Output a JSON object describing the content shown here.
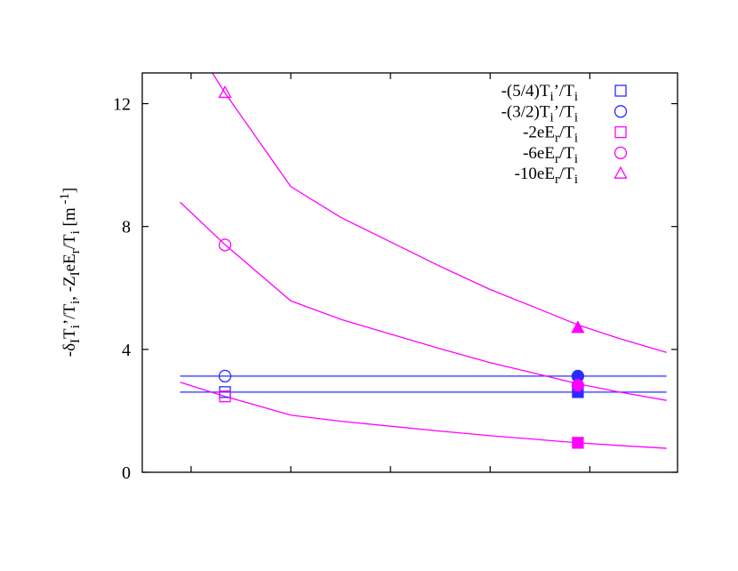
{
  "chart_data": {
    "type": "line",
    "title": "",
    "xlabel": "",
    "ylabel_parts": [
      {
        "t": "-δ"
      },
      {
        "t": "I",
        "sub": true
      },
      {
        "t": "T"
      },
      {
        "t": "i",
        "sub": true
      },
      {
        "t": "’/T"
      },
      {
        "t": "i",
        "sub": true
      },
      {
        "t": ", -Z"
      },
      {
        "t": "I",
        "sub": true
      },
      {
        "t": "eE"
      },
      {
        "t": "r",
        "sub": true
      },
      {
        "t": "/T"
      },
      {
        "t": "i",
        "sub": true
      },
      {
        "t": " [m"
      },
      {
        "t": " -1",
        "sup": true
      },
      {
        "t": "]"
      }
    ],
    "xlim": [
      -0.49,
      4.88
    ],
    "ylim": [
      0,
      13
    ],
    "x_ticks": [
      0,
      1,
      2,
      3,
      4
    ],
    "x_tick_labels_shown": false,
    "y_ticks": [
      0,
      4,
      8,
      12
    ],
    "y_tick_labels": [
      "0",
      "4",
      "8",
      "12"
    ],
    "grid": false,
    "legend_position": "top-right",
    "colors": {
      "blue": "#2b2bff",
      "magenta": "#ff00ff"
    },
    "lines": [
      {
        "color": "blue",
        "x": [
          -0.11,
          4.77
        ],
        "y": [
          3.13,
          3.13
        ]
      },
      {
        "color": "blue",
        "x": [
          -0.11,
          4.77
        ],
        "y": [
          2.61,
          2.61
        ]
      },
      {
        "color": "magenta",
        "x": [
          -0.11,
          0.34,
          1,
          1.5,
          2,
          2.5,
          3,
          3.5,
          3.88,
          4.3,
          4.77
        ],
        "y": [
          2.93,
          2.47,
          1.86,
          1.66,
          1.5,
          1.34,
          1.19,
          1.06,
          0.96,
          0.87,
          0.78
        ]
      },
      {
        "color": "magenta",
        "x": [
          -0.11,
          0.34,
          1,
          1.5,
          2,
          2.5,
          3,
          3.5,
          3.88,
          4.3,
          4.77
        ],
        "y": [
          8.79,
          7.41,
          5.58,
          4.98,
          4.5,
          4.02,
          3.57,
          3.18,
          2.88,
          2.61,
          2.34
        ]
      },
      {
        "color": "magenta",
        "x": [
          -0.11,
          0.34,
          1,
          1.5,
          2,
          2.5,
          3,
          3.5,
          3.88,
          4.3,
          4.77
        ],
        "y": [
          14.65,
          12.35,
          9.3,
          8.3,
          7.5,
          6.7,
          5.95,
          5.3,
          4.8,
          4.35,
          3.9
        ]
      }
    ],
    "series": [
      {
        "name_parts": [
          {
            "t": "-(5/4)T"
          },
          {
            "t": "i",
            "sub": true
          },
          {
            "t": "’/T"
          },
          {
            "t": "i",
            "sub": true
          }
        ],
        "color": "blue",
        "marker": "square",
        "points": [
          {
            "x": 0.34,
            "y": 2.61,
            "filled": false
          },
          {
            "x": 3.88,
            "y": 2.61,
            "filled": true
          }
        ]
      },
      {
        "name_parts": [
          {
            "t": "-(3/2)T"
          },
          {
            "t": "i",
            "sub": true
          },
          {
            "t": "’/T"
          },
          {
            "t": "i",
            "sub": true
          }
        ],
        "color": "blue",
        "marker": "circle",
        "points": [
          {
            "x": 0.34,
            "y": 3.13,
            "filled": false
          },
          {
            "x": 3.88,
            "y": 3.13,
            "filled": true
          }
        ]
      },
      {
        "name_parts": [
          {
            "t": "-2eE"
          },
          {
            "t": "r",
            "sub": true
          },
          {
            "t": "/T"
          },
          {
            "t": "i",
            "sub": true
          }
        ],
        "color": "magenta",
        "marker": "square",
        "points": [
          {
            "x": 0.34,
            "y": 2.47,
            "filled": false
          },
          {
            "x": 3.88,
            "y": 0.96,
            "filled": true
          }
        ]
      },
      {
        "name_parts": [
          {
            "t": "-6eE"
          },
          {
            "t": "r",
            "sub": true
          },
          {
            "t": "/T"
          },
          {
            "t": "i",
            "sub": true
          }
        ],
        "color": "magenta",
        "marker": "circle",
        "points": [
          {
            "x": 0.34,
            "y": 7.4,
            "filled": false
          },
          {
            "x": 3.88,
            "y": 2.83,
            "filled": true
          }
        ]
      },
      {
        "name_parts": [
          {
            "t": "-10eE"
          },
          {
            "t": "r",
            "sub": true
          },
          {
            "t": "/T"
          },
          {
            "t": "i",
            "sub": true
          }
        ],
        "color": "magenta",
        "marker": "triangle",
        "points": [
          {
            "x": 0.34,
            "y": 12.35,
            "filled": false
          },
          {
            "x": 3.88,
            "y": 4.7,
            "filled": true
          }
        ]
      }
    ]
  }
}
